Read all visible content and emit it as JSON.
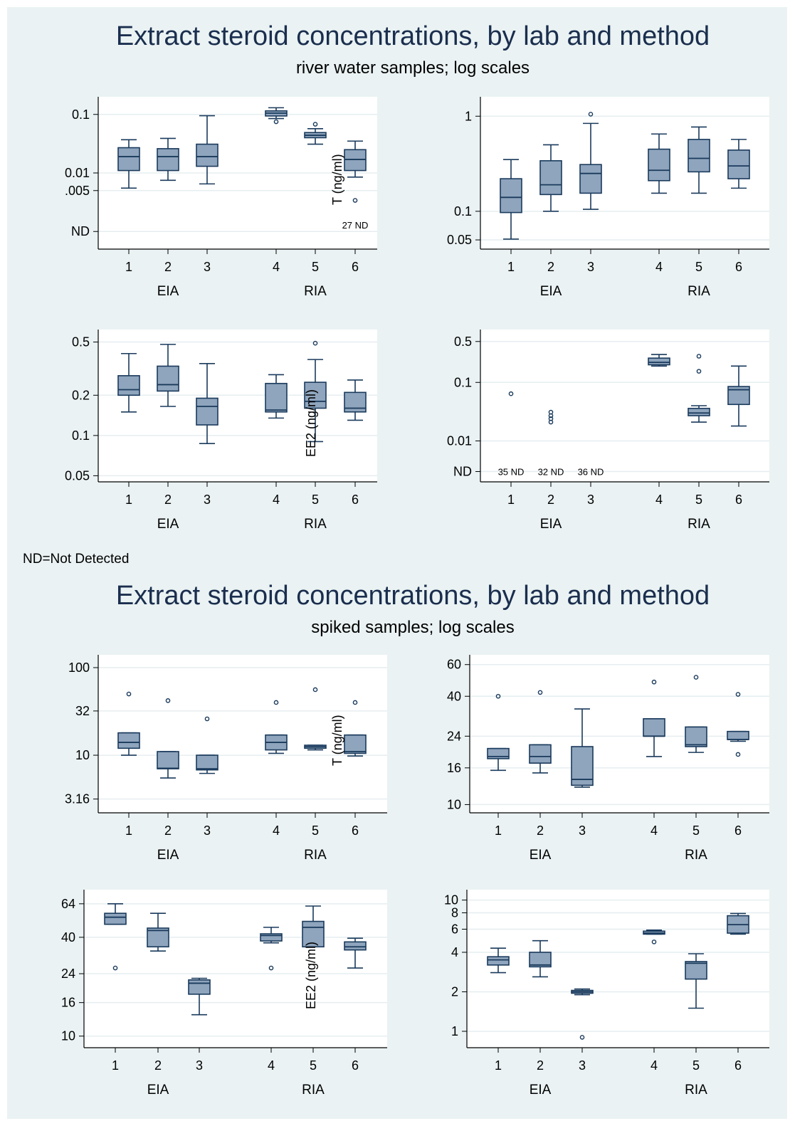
{
  "section1": {
    "title": "Extract steroid concentrations, by lab and method",
    "subtitle": "river water samples; log scales"
  },
  "note": "ND=Not Detected",
  "section2": {
    "title": "Extract steroid concentrations, by lab and method",
    "subtitle": "spiked samples; log scales"
  },
  "colors": {
    "box_fill": "#8fa5bd",
    "box_edge": "#1a3a5c",
    "panel_bg": "#ffffff",
    "page_bg": "#eaf2f3",
    "grid": "#e6eef0"
  },
  "chart_data": [
    {
      "type": "box",
      "ylabel": "T (ng/ml)",
      "scale": "log",
      "ylim": [
        0.0005,
        0.2
      ],
      "yticks": [
        {
          "v": 0.1,
          "label": "0.1"
        },
        {
          "v": 0.01,
          "label": "0.01"
        },
        {
          "v": 0.005,
          "label": ".005"
        },
        {
          "v": 0.001,
          "label": "ND"
        }
      ],
      "categories": [
        "1",
        "2",
        "3",
        "4",
        "5",
        "6"
      ],
      "groups": [
        "EIA",
        "RIA"
      ],
      "boxes": [
        {
          "min": 0.0055,
          "q1": 0.011,
          "median": 0.019,
          "q3": 0.027,
          "max": 0.037,
          "outliers": []
        },
        {
          "min": 0.0075,
          "q1": 0.011,
          "median": 0.019,
          "q3": 0.026,
          "max": 0.039,
          "outliers": []
        },
        {
          "min": 0.0065,
          "q1": 0.013,
          "median": 0.019,
          "q3": 0.031,
          "max": 0.095,
          "outliers": []
        },
        {
          "min": 0.085,
          "q1": 0.094,
          "median": 0.105,
          "q3": 0.115,
          "max": 0.13,
          "outliers": [
            0.075
          ]
        },
        {
          "min": 0.031,
          "q1": 0.04,
          "median": 0.044,
          "q3": 0.049,
          "max": 0.057,
          "outliers": [
            0.068
          ]
        },
        {
          "min": 0.0085,
          "q1": 0.011,
          "median": 0.017,
          "q3": 0.025,
          "max": 0.035,
          "outliers": [
            0.0034
          ]
        }
      ],
      "annotations": [
        {
          "cat": 6,
          "text": "27 ND",
          "v": 0.0013
        }
      ]
    },
    {
      "type": "box",
      "ylabel": "",
      "scale": "log",
      "ylim": [
        0.04,
        1.6
      ],
      "yticks": [
        {
          "v": 1,
          "label": "1"
        },
        {
          "v": 0.1,
          "label": "0.1"
        },
        {
          "v": 0.05,
          "label": "0.05"
        }
      ],
      "categories": [
        "1",
        "2",
        "3",
        "4",
        "5",
        "6"
      ],
      "groups": [
        "EIA",
        "RIA"
      ],
      "boxes": [
        {
          "min": 0.051,
          "q1": 0.097,
          "median": 0.14,
          "q3": 0.22,
          "max": 0.35,
          "outliers": []
        },
        {
          "min": 0.1,
          "q1": 0.15,
          "median": 0.19,
          "q3": 0.34,
          "max": 0.5,
          "outliers": []
        },
        {
          "min": 0.105,
          "q1": 0.155,
          "median": 0.25,
          "q3": 0.31,
          "max": 0.84,
          "outliers": [
            1.05
          ]
        },
        {
          "min": 0.155,
          "q1": 0.21,
          "median": 0.27,
          "q3": 0.45,
          "max": 0.65,
          "outliers": []
        },
        {
          "min": 0.155,
          "q1": 0.26,
          "median": 0.36,
          "q3": 0.57,
          "max": 0.77,
          "outliers": []
        },
        {
          "min": 0.175,
          "q1": 0.22,
          "median": 0.3,
          "q3": 0.44,
          "max": 0.57,
          "outliers": []
        }
      ],
      "annotations": []
    },
    {
      "type": "box",
      "ylabel": "EE2 (ng/ml)",
      "scale": "log",
      "ylim": [
        0.045,
        0.62
      ],
      "yticks": [
        {
          "v": 0.5,
          "label": "0.5"
        },
        {
          "v": 0.2,
          "label": "0.2"
        },
        {
          "v": 0.1,
          "label": "0.1"
        },
        {
          "v": 0.05,
          "label": "0.05"
        }
      ],
      "categories": [
        "1",
        "2",
        "3",
        "4",
        "5",
        "6"
      ],
      "groups": [
        "EIA",
        "RIA"
      ],
      "boxes": [
        {
          "min": 0.15,
          "q1": 0.2,
          "median": 0.22,
          "q3": 0.28,
          "max": 0.41,
          "outliers": []
        },
        {
          "min": 0.165,
          "q1": 0.215,
          "median": 0.24,
          "q3": 0.33,
          "max": 0.48,
          "outliers": []
        },
        {
          "min": 0.087,
          "q1": 0.12,
          "median": 0.165,
          "q3": 0.19,
          "max": 0.345,
          "outliers": []
        },
        {
          "min": 0.135,
          "q1": 0.15,
          "median": 0.155,
          "q3": 0.245,
          "max": 0.285,
          "outliers": []
        },
        {
          "min": 0.09,
          "q1": 0.16,
          "median": 0.18,
          "q3": 0.25,
          "max": 0.37,
          "outliers": [
            0.49
          ]
        },
        {
          "min": 0.13,
          "q1": 0.15,
          "median": 0.16,
          "q3": 0.21,
          "max": 0.26,
          "outliers": []
        }
      ],
      "annotations": []
    },
    {
      "type": "box",
      "ylabel": "",
      "scale": "log",
      "ylim": [
        0.002,
        0.8
      ],
      "yticks": [
        {
          "v": 0.5,
          "label": "0.5"
        },
        {
          "v": 0.1,
          "label": "0.1"
        },
        {
          "v": 0.01,
          "label": "0.01"
        },
        {
          "v": 0.003,
          "label": "ND"
        }
      ],
      "categories": [
        "1",
        "2",
        "3",
        "4",
        "5",
        "6"
      ],
      "groups": [
        "EIA",
        "RIA"
      ],
      "boxes": [
        null,
        null,
        null,
        {
          "min": 0.19,
          "q1": 0.2,
          "median": 0.22,
          "q3": 0.26,
          "max": 0.3,
          "outliers": []
        },
        {
          "min": 0.021,
          "q1": 0.027,
          "median": 0.03,
          "q3": 0.036,
          "max": 0.04,
          "outliers": [
            0.155,
            0.28
          ]
        },
        {
          "min": 0.018,
          "q1": 0.042,
          "median": 0.075,
          "q3": 0.085,
          "max": 0.19,
          "outliers": []
        }
      ],
      "extra_outliers": [
        {
          "cat": 1,
          "values": [
            0.064
          ]
        },
        {
          "cat": 2,
          "values": [
            0.031,
            0.027,
            0.024,
            0.021
          ]
        }
      ],
      "annotations": [
        {
          "cat": 1,
          "text": "35 ND",
          "v": 0.003
        },
        {
          "cat": 2,
          "text": "32 ND",
          "v": 0.003
        },
        {
          "cat": 3,
          "text": "36 ND",
          "v": 0.003
        }
      ]
    },
    {
      "type": "box",
      "ylabel": "T (ng/ml)",
      "scale": "log",
      "ylim": [
        2.2,
        140
      ],
      "yticks": [
        {
          "v": 100,
          "label": "100"
        },
        {
          "v": 32,
          "label": "32"
        },
        {
          "v": 10,
          "label": "10"
        },
        {
          "v": 3.16,
          "label": "3.16"
        }
      ],
      "categories": [
        "1",
        "2",
        "3",
        "4",
        "5",
        "6"
      ],
      "groups": [
        "EIA",
        "RIA"
      ],
      "boxes": [
        {
          "min": 10,
          "q1": 12,
          "median": 14,
          "q3": 18,
          "max": 18,
          "outliers": [
            50
          ]
        },
        {
          "min": 5.5,
          "q1": 7,
          "median": 7.1,
          "q3": 11,
          "max": 11,
          "outliers": [
            42
          ]
        },
        {
          "min": 6.2,
          "q1": 6.8,
          "median": 7,
          "q3": 10,
          "max": 10,
          "outliers": [
            26
          ]
        },
        {
          "min": 10.5,
          "q1": 11.5,
          "median": 14,
          "q3": 17,
          "max": 17,
          "outliers": [
            40
          ]
        },
        {
          "min": 11.5,
          "q1": 12,
          "median": 12.5,
          "q3": 13,
          "max": 13,
          "outliers": [
            56
          ]
        },
        {
          "min": 9.8,
          "q1": 10.5,
          "median": 11,
          "q3": 17,
          "max": 17,
          "outliers": [
            40
          ]
        }
      ],
      "annotations": []
    },
    {
      "type": "box",
      "ylabel": "",
      "scale": "log",
      "ylim": [
        9,
        68
      ],
      "yticks": [
        {
          "v": 60,
          "label": "60"
        },
        {
          "v": 40,
          "label": "40"
        },
        {
          "v": 24,
          "label": "24"
        },
        {
          "v": 16,
          "label": "16"
        },
        {
          "v": 10,
          "label": "10"
        }
      ],
      "categories": [
        "1",
        "2",
        "3",
        "4",
        "5",
        "6"
      ],
      "groups": [
        "EIA",
        "RIA"
      ],
      "boxes": [
        {
          "min": 15.5,
          "q1": 18,
          "median": 18.5,
          "q3": 20.5,
          "max": 20.5,
          "outliers": [
            40
          ]
        },
        {
          "min": 15,
          "q1": 17,
          "median": 18.5,
          "q3": 21.5,
          "max": 21.5,
          "outliers": [
            42
          ]
        },
        {
          "min": 12.5,
          "q1": 12.8,
          "median": 13.8,
          "q3": 21,
          "max": 34,
          "outliers": []
        },
        {
          "min": 18.5,
          "q1": 24,
          "median": 24,
          "q3": 30,
          "max": 30,
          "outliers": [
            48
          ]
        },
        {
          "min": 19.5,
          "q1": 21,
          "median": 21.5,
          "q3": 27,
          "max": 27,
          "outliers": [
            51
          ]
        },
        {
          "min": 22.5,
          "q1": 23,
          "median": 23,
          "q3": 25.5,
          "max": 25.5,
          "outliers": [
            19,
            41
          ]
        }
      ],
      "annotations": []
    },
    {
      "type": "box",
      "ylabel": "EE2 (ng/ml)",
      "scale": "log",
      "ylim": [
        8.5,
        78
      ],
      "yticks": [
        {
          "v": 64,
          "label": "64"
        },
        {
          "v": 40,
          "label": "40"
        },
        {
          "v": 24,
          "label": "24"
        },
        {
          "v": 16,
          "label": "16"
        },
        {
          "v": 10,
          "label": "10"
        }
      ],
      "categories": [
        "1",
        "2",
        "3",
        "4",
        "5",
        "6"
      ],
      "groups": [
        "EIA",
        "RIA"
      ],
      "boxes": [
        {
          "min": 48,
          "q1": 48,
          "median": 53,
          "q3": 56,
          "max": 64,
          "outliers": [
            26
          ]
        },
        {
          "min": 33,
          "q1": 35,
          "median": 44,
          "q3": 45.5,
          "max": 56,
          "outliers": []
        },
        {
          "min": 13.5,
          "q1": 18,
          "median": 21,
          "q3": 22,
          "max": 22.5,
          "outliers": []
        },
        {
          "min": 37,
          "q1": 38,
          "median": 41,
          "q3": 42,
          "max": 46,
          "outliers": [
            26
          ]
        },
        {
          "min": 35,
          "q1": 35,
          "median": 46,
          "q3": 50,
          "max": 62,
          "outliers": []
        },
        {
          "min": 26,
          "q1": 33.5,
          "median": 35,
          "q3": 37.5,
          "max": 39.5,
          "outliers": []
        }
      ],
      "annotations": []
    },
    {
      "type": "box",
      "ylabel": "",
      "scale": "log",
      "ylim": [
        0.75,
        12
      ],
      "yticks": [
        {
          "v": 10,
          "label": "10"
        },
        {
          "v": 8,
          "label": "8"
        },
        {
          "v": 6,
          "label": "6"
        },
        {
          "v": 4,
          "label": "4"
        },
        {
          "v": 2,
          "label": "2"
        },
        {
          "v": 1,
          "label": "1"
        }
      ],
      "categories": [
        "1",
        "2",
        "3",
        "4",
        "5",
        "6"
      ],
      "groups": [
        "EIA",
        "RIA"
      ],
      "boxes": [
        {
          "min": 2.8,
          "q1": 3.2,
          "median": 3.5,
          "q3": 3.7,
          "max": 4.3,
          "outliers": []
        },
        {
          "min": 2.6,
          "q1": 3.1,
          "median": 3.2,
          "q3": 4,
          "max": 4.9,
          "outliers": []
        },
        {
          "min": 1.9,
          "q1": 1.95,
          "median": 2,
          "q3": 2.05,
          "max": 2.1,
          "outliers": [
            0.9
          ]
        },
        {
          "min": 5.5,
          "q1": 5.5,
          "median": 5.6,
          "q3": 5.8,
          "max": 5.9,
          "outliers": [
            4.8
          ]
        },
        {
          "min": 1.5,
          "q1": 2.5,
          "median": 3.3,
          "q3": 3.4,
          "max": 3.9,
          "outliers": []
        },
        {
          "min": 5.5,
          "q1": 5.6,
          "median": 6.5,
          "q3": 7.6,
          "max": 7.9,
          "outliers": []
        }
      ],
      "annotations": []
    }
  ]
}
